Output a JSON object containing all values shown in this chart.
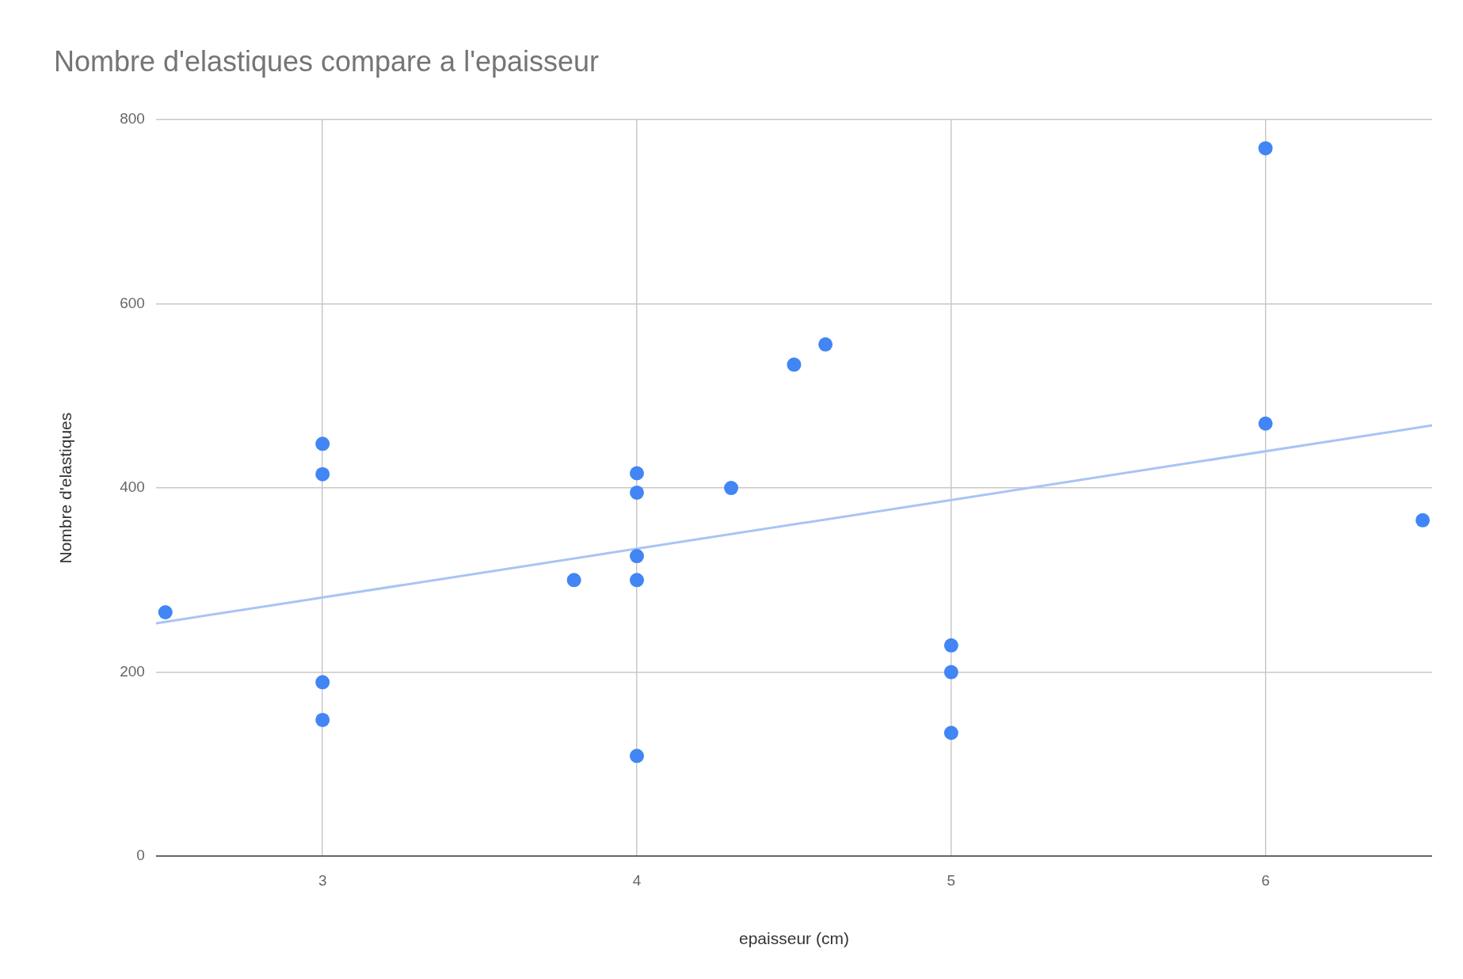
{
  "chart_data": {
    "type": "scatter",
    "title": "Nombre d'elastiques compare a l'epaisseur",
    "xlabel": "epaisseur (cm)",
    "ylabel": "Nombre d'elastiques",
    "xlim": [
      2.47,
      6.53
    ],
    "xticks": [
      3,
      4,
      5,
      6
    ],
    "ylim": [
      0,
      800
    ],
    "yticks": [
      0,
      200,
      400,
      600,
      800
    ],
    "grid": true,
    "marker": "circle",
    "series": [
      {
        "type": "scatter",
        "color": "#4285f4",
        "x": [
          2.5,
          3,
          3,
          3,
          3,
          3.8,
          4,
          4,
          4,
          4,
          4,
          4.3,
          4.5,
          4.6,
          5,
          5,
          5,
          6,
          6,
          6.5
        ],
        "values": [
          265,
          448,
          415,
          189,
          148,
          300,
          416,
          395,
          326,
          300,
          109,
          400,
          534,
          556,
          229,
          200,
          134,
          769,
          470,
          365
        ]
      },
      {
        "type": "line",
        "color": "#a9c4f5",
        "marker": "none",
        "x": [
          2.47,
          6.53
        ],
        "values": [
          253,
          468
        ]
      }
    ]
  }
}
